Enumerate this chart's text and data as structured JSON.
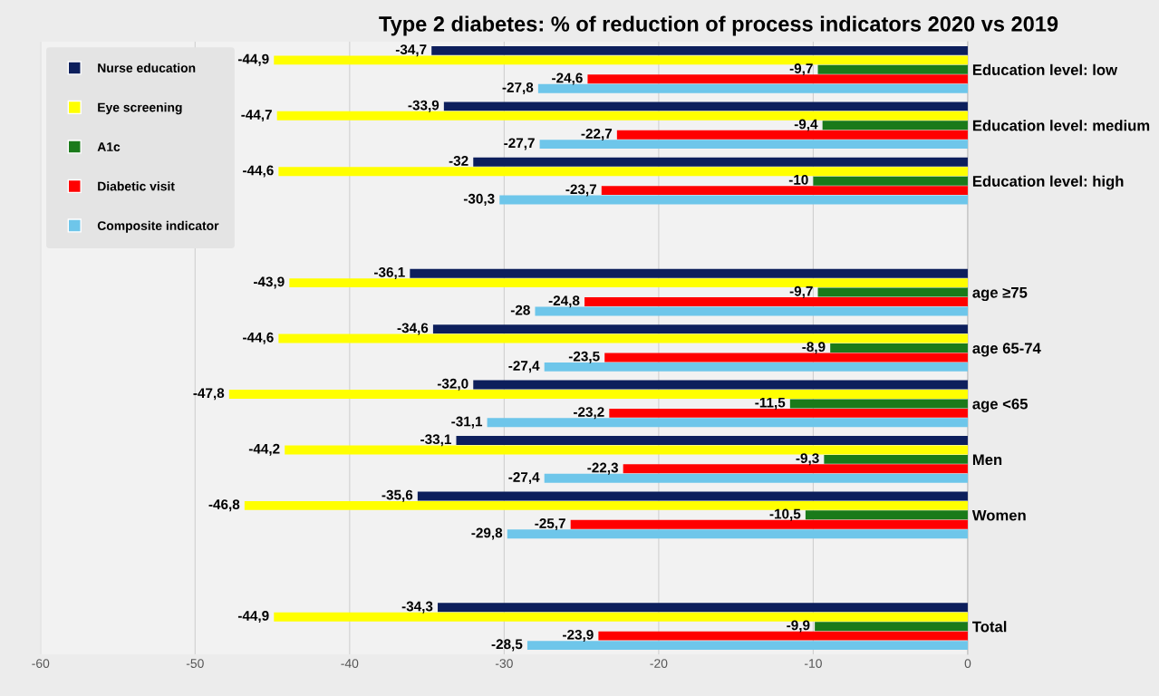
{
  "chart_data": {
    "type": "bar",
    "orientation": "horizontal",
    "title": "Type 2 diabetes: % of reduction of process indicators 2020 vs 2019",
    "categories": [
      "Education level: low",
      "Education level: medium",
      "Education level: high",
      null,
      "age ≥75",
      "age 65-74",
      "age <65",
      "Men",
      "Women",
      null,
      "Total"
    ],
    "series": [
      {
        "name": "Nurse education",
        "color": "#0d1f5c",
        "values": [
          -34.7,
          -33.9,
          -32,
          null,
          -36.1,
          -34.6,
          -32.0,
          -33.1,
          -35.6,
          null,
          -34.3
        ],
        "value_labels": [
          "-34,7",
          "-33,9",
          "-32",
          null,
          "-36,1",
          "-34,6",
          "-32,0",
          "-33,1",
          "-35,6",
          null,
          "-34,3"
        ]
      },
      {
        "name": "Eye screening",
        "color": "#ffff00",
        "values": [
          -44.9,
          -44.7,
          -44.6,
          null,
          -43.9,
          -44.6,
          -47.8,
          -44.2,
          -46.8,
          null,
          -44.9
        ],
        "value_labels": [
          "-44,9",
          "-44,7",
          "-44,6",
          null,
          "-43,9",
          "-44,6",
          "-47,8",
          "-44,2",
          "-46,8",
          null,
          "-44,9"
        ]
      },
      {
        "name": "A1c",
        "color": "#1a7a1a",
        "values": [
          -9.7,
          -9.4,
          -10,
          null,
          -9.7,
          -8.9,
          -11.5,
          -9.3,
          -10.5,
          null,
          -9.9
        ],
        "value_labels": [
          "-9,7",
          "-9,4",
          "-10",
          null,
          "-9,7",
          "-8,9",
          "-11,5",
          "-9,3",
          "-10,5",
          null,
          "-9,9"
        ]
      },
      {
        "name": "Diabetic visit",
        "color": "#ff0000",
        "values": [
          -24.6,
          -22.7,
          -23.7,
          null,
          -24.8,
          -23.5,
          -23.2,
          -22.3,
          -25.7,
          null,
          -23.9
        ],
        "value_labels": [
          "-24,6",
          "-22,7",
          "-23,7",
          null,
          "-24,8",
          "-23,5",
          "-23,2",
          "-22,3",
          "-25,7",
          null,
          "-23,9"
        ]
      },
      {
        "name": "Composite indicator",
        "color": "#6ec6ea",
        "values": [
          -27.8,
          -27.7,
          -30.3,
          null,
          -28,
          -27.4,
          -31.1,
          -27.4,
          -29.8,
          null,
          -28.5
        ],
        "value_labels": [
          "-27,8",
          "-27,7",
          "-30,3",
          null,
          "-28",
          "-27,4",
          "-31,1",
          "-27,4",
          "-29,8",
          null,
          "-28,5"
        ]
      }
    ],
    "xlim": [
      -60,
      0
    ],
    "xticks": [
      -60,
      -50,
      -40,
      -30,
      -20,
      -10,
      0
    ],
    "grid": "x",
    "legend": "top left"
  }
}
